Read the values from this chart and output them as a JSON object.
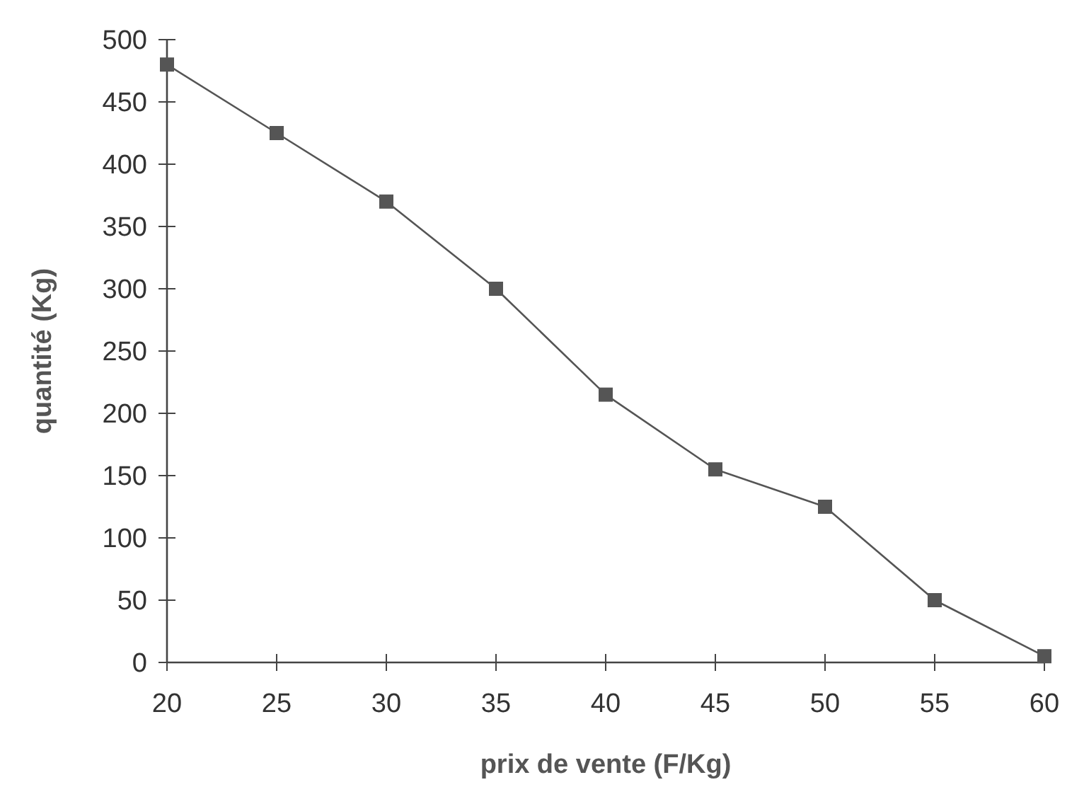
{
  "chart_data": {
    "type": "line",
    "xlabel": "prix de vente (F/Kg)",
    "ylabel": "quantité (Kg)",
    "x": [
      20,
      25,
      30,
      35,
      40,
      45,
      50,
      55,
      60
    ],
    "series": [
      {
        "color": "#555555",
        "values": [
          480,
          425,
          370,
          300,
          215,
          155,
          125,
          50,
          5
        ]
      }
    ],
    "xlim": [
      20,
      60
    ],
    "xticks": [
      20,
      25,
      30,
      35,
      40,
      45,
      50,
      55,
      60
    ],
    "ylim": [
      0,
      500
    ],
    "yticks": [
      0,
      50,
      100,
      150,
      200,
      250,
      300,
      350,
      400,
      450,
      500
    ],
    "marker": "square",
    "grid": false
  }
}
